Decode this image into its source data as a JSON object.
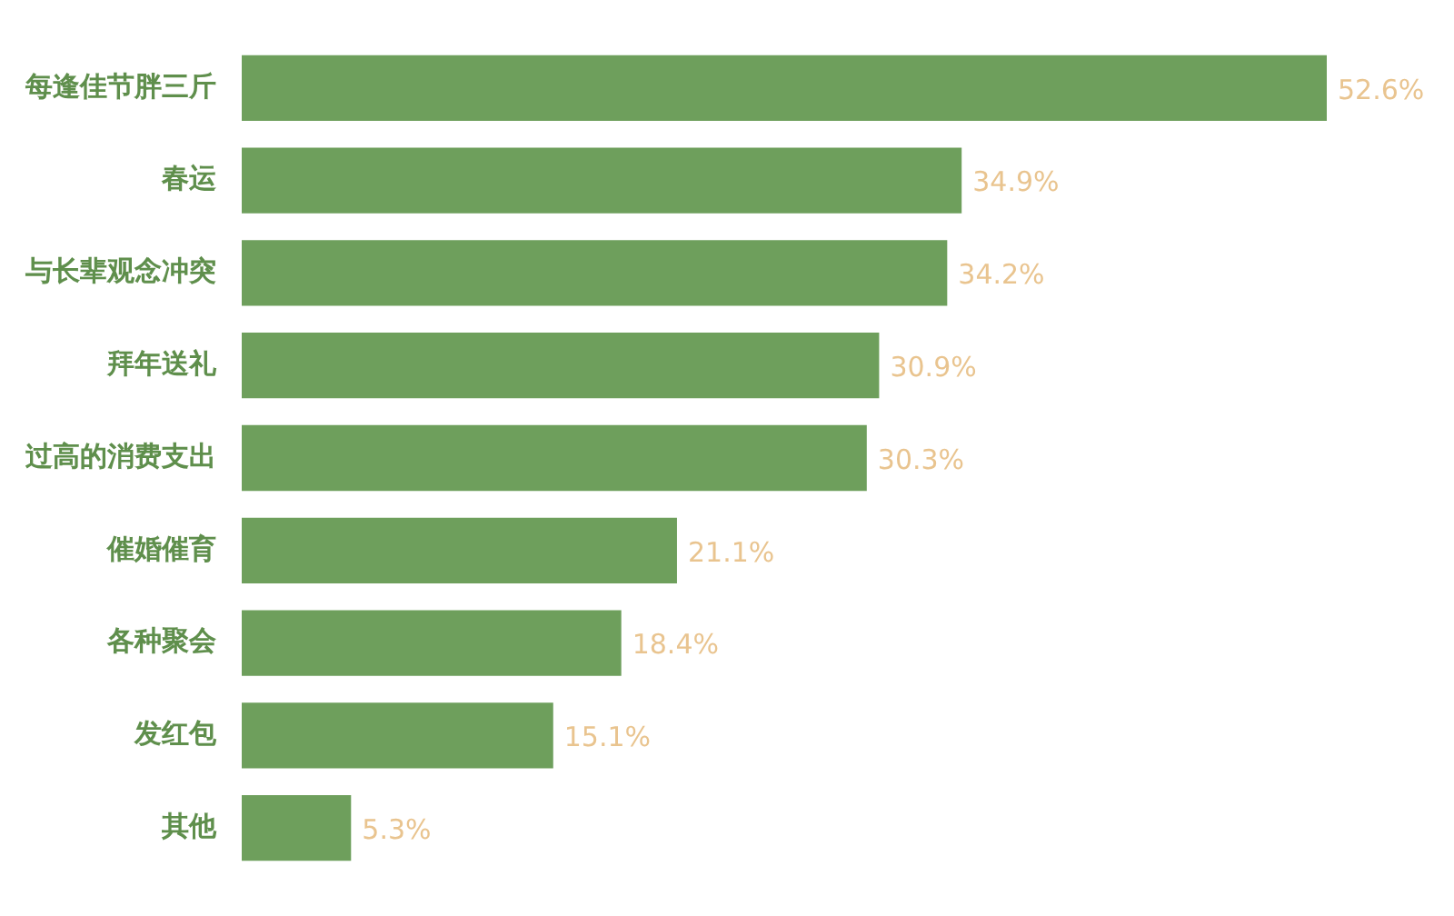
{
  "chart_data": {
    "type": "bar",
    "orientation": "horizontal",
    "categories": [
      "每逢佳节胖三斤",
      "春运",
      "与长辈观念冲突",
      "拜年送礼",
      "过高的消费支出",
      "催婚催育",
      "各种聚会",
      "发红包",
      "其他"
    ],
    "values": [
      52.6,
      34.9,
      34.2,
      30.9,
      30.3,
      21.1,
      18.4,
      15.1,
      5.3
    ],
    "value_labels": [
      "52.6%",
      "34.9%",
      "34.2%",
      "30.9%",
      "30.3%",
      "21.1%",
      "18.4%",
      "15.1%",
      "5.3%"
    ],
    "color": "#6e9f5c",
    "legend": false
  }
}
